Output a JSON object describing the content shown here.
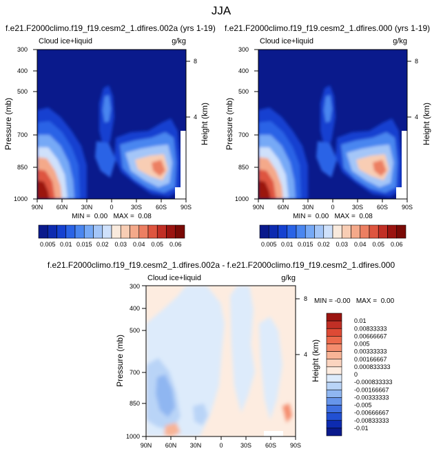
{
  "figure": {
    "title": "JJA"
  },
  "chart_data": [
    {
      "type": "heatmap",
      "title": "f.e21.F2000climo.f19_f19.cesm2_1.dfires.002a (yrs 1-19)",
      "subtitle_left": "Cloud ice+liquid",
      "subtitle_right": "g/kg",
      "xlabel": "",
      "ylabel": "Pressure (mb)",
      "y2label": "Height (km)",
      "x_ticks": [
        "90N",
        "60N",
        "30N",
        "0",
        "30S",
        "60S",
        "90S"
      ],
      "y_ticks": [
        "300",
        "400",
        "500",
        "700",
        "850",
        "1000"
      ],
      "y2_ticks": [
        "8",
        "4"
      ],
      "min_max_text": "MIN =  0.00   MAX =  0.08",
      "ylim": [
        1000,
        300
      ],
      "xlim": [
        "90N",
        "90S"
      ],
      "colorbar": {
        "orientation": "horizontal",
        "labels": [
          "0.005",
          "0.01",
          "0.015",
          "0.02",
          "0.03",
          "0.04",
          "0.05",
          "0.06"
        ],
        "colors": [
          "#0a1a8c",
          "#0d2bb0",
          "#1541d0",
          "#2a63e6",
          "#4a86f0",
          "#76a9f6",
          "#a4c6f8",
          "#cfe1fb",
          "#f9eadd",
          "#f8cdb4",
          "#f4a98a",
          "#ec7f62",
          "#de553f",
          "#c12f25",
          "#9b1410",
          "#7a0a06"
        ]
      },
      "series": [
        {
          "lat": "60N",
          "pressure": 1000,
          "value": 0.07
        },
        {
          "lat": "60N",
          "pressure": 850,
          "value": 0.05
        },
        {
          "lat": "60N",
          "pressure": 700,
          "value": 0.02
        },
        {
          "lat": "0",
          "pressure": 600,
          "value": 0.02
        },
        {
          "lat": "45S",
          "pressure": 850,
          "value": 0.04
        },
        {
          "lat": "60S",
          "pressure": 850,
          "value": 0.05
        }
      ]
    },
    {
      "type": "heatmap",
      "title": "f.e21.F2000climo.f19_f19.cesm2_1.dfires.000 (yrs 1-19)",
      "subtitle_left": "Cloud ice+liquid",
      "subtitle_right": "g/kg",
      "xlabel": "",
      "ylabel": "Pressure (mb)",
      "y2label": "Height (km)",
      "x_ticks": [
        "90N",
        "60N",
        "30N",
        "0",
        "30S",
        "60S",
        "90S"
      ],
      "y_ticks": [
        "300",
        "400",
        "500",
        "700",
        "850",
        "1000"
      ],
      "y2_ticks": [
        "8",
        "4"
      ],
      "min_max_text": "MIN =  0.00   MAX =  0.08",
      "ylim": [
        1000,
        300
      ],
      "xlim": [
        "90N",
        "90S"
      ],
      "colorbar": {
        "orientation": "horizontal",
        "labels": [
          "0.005",
          "0.01",
          "0.015",
          "0.02",
          "0.03",
          "0.04",
          "0.05",
          "0.06"
        ],
        "colors": [
          "#0a1a8c",
          "#0d2bb0",
          "#1541d0",
          "#2a63e6",
          "#4a86f0",
          "#76a9f6",
          "#a4c6f8",
          "#cfe1fb",
          "#f9eadd",
          "#f8cdb4",
          "#f4a98a",
          "#ec7f62",
          "#de553f",
          "#c12f25",
          "#9b1410",
          "#7a0a06"
        ]
      },
      "series": [
        {
          "lat": "60N",
          "pressure": 1000,
          "value": 0.07
        },
        {
          "lat": "60N",
          "pressure": 850,
          "value": 0.05
        },
        {
          "lat": "60N",
          "pressure": 700,
          "value": 0.02
        },
        {
          "lat": "0",
          "pressure": 600,
          "value": 0.02
        },
        {
          "lat": "45S",
          "pressure": 850,
          "value": 0.04
        },
        {
          "lat": "60S",
          "pressure": 850,
          "value": 0.05
        }
      ]
    },
    {
      "type": "heatmap",
      "title": "f.e21.F2000climo.f19_f19.cesm2_1.dfires.002a - f.e21.F2000climo.f19_f19.cesm2_1.dfires.000",
      "subtitle_left": "Cloud ice+liquid",
      "subtitle_right": "g/kg",
      "xlabel": "",
      "ylabel": "Pressure (mb)",
      "y2label": "Height (km)",
      "x_ticks": [
        "90N",
        "60N",
        "30N",
        "0",
        "30S",
        "60S",
        "90S"
      ],
      "y_ticks": [
        "300",
        "400",
        "500",
        "700",
        "850",
        "1000"
      ],
      "y2_ticks": [
        "8",
        "4"
      ],
      "min_max_text": "MIN = -0.00   MAX =  0.00",
      "ylim": [
        1000,
        300
      ],
      "xlim": [
        "90N",
        "90S"
      ],
      "colorbar": {
        "orientation": "vertical",
        "labels": [
          "0.01",
          "0.00833333",
          "0.00666667",
          "0.005",
          "0.00333333",
          "0.00166667",
          "0.000833333",
          "0",
          "-0.000833333",
          "-0.00166667",
          "-0.00333333",
          "-0.005",
          "-0.00666667",
          "-0.00833333",
          "-0.01"
        ],
        "colors": [
          "#9b1410",
          "#c12f25",
          "#de4a35",
          "#ec6a4c",
          "#f48d6e",
          "#f8b496",
          "#fbd4bf",
          "#fdece0",
          "#ddebfb",
          "#b9d4f7",
          "#8fb6f1",
          "#6795ea",
          "#3f6fe0",
          "#2250d3",
          "#0d2bb0",
          "#0a1a8c"
        ]
      },
      "series": [
        {
          "lat": "60N",
          "pressure": 850,
          "value": -0.0017
        },
        {
          "lat": "0",
          "pressure": 500,
          "value": 0.0008
        },
        {
          "lat": "45S",
          "pressure": 700,
          "value": -0.0008
        }
      ]
    }
  ]
}
